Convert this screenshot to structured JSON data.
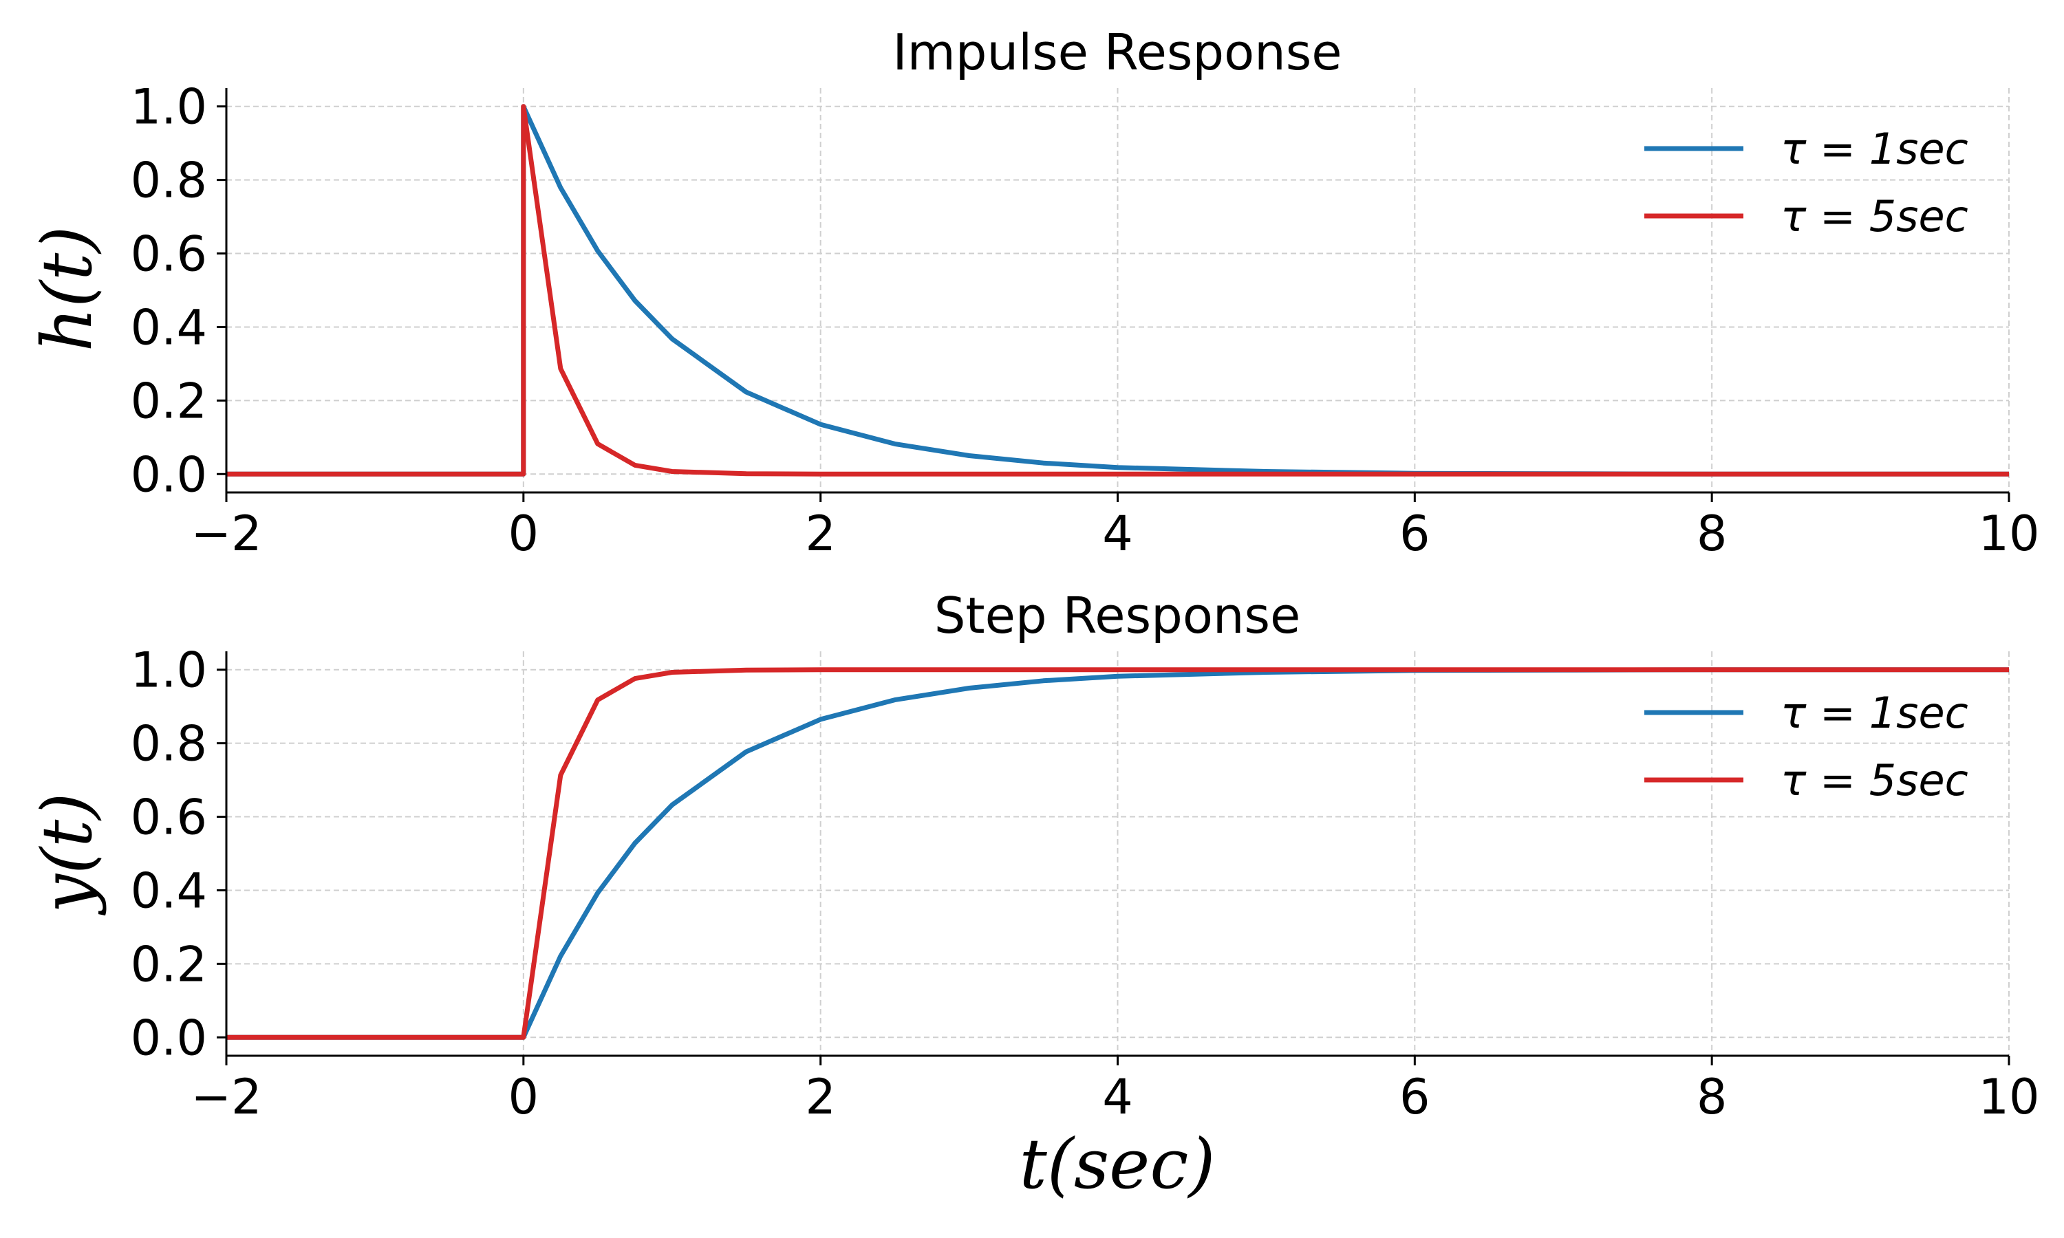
{
  "colors": {
    "series_blue": "#1f77b4",
    "series_red": "#d62728",
    "grid": "#cfcfcf",
    "axis": "#000000"
  },
  "chart_data": [
    {
      "type": "line",
      "title": "Impulse Response",
      "xlabel": "",
      "ylabel": "h(t)",
      "xlim": [
        -2,
        10
      ],
      "ylim": [
        -0.05,
        1.05
      ],
      "xticks": [
        -2,
        0,
        2,
        4,
        6,
        8,
        10
      ],
      "xtick_labels": [
        "−2",
        "0",
        "2",
        "4",
        "6",
        "8",
        "10"
      ],
      "yticks": [
        0.0,
        0.2,
        0.4,
        0.6,
        0.8,
        1.0
      ],
      "ytick_labels": [
        "0.0",
        "0.2",
        "0.4",
        "0.6",
        "0.8",
        "1.0"
      ],
      "grid": true,
      "legend_position": "top-right",
      "x": [
        -2,
        0,
        0,
        0.25,
        0.5,
        0.75,
        1,
        1.5,
        2,
        2.5,
        3,
        3.5,
        4,
        5,
        6,
        7,
        8,
        9,
        10
      ],
      "series": [
        {
          "name": "τ = 1sec",
          "color": "#1f77b4",
          "values": [
            0,
            0,
            1.0,
            0.779,
            0.607,
            0.472,
            0.368,
            0.223,
            0.135,
            0.082,
            0.05,
            0.03,
            0.018,
            0.007,
            0.002,
            0.001,
            0.0,
            0.0,
            0.0
          ]
        },
        {
          "name": "τ = 5sec",
          "color": "#d62728",
          "values": [
            0,
            0,
            1.0,
            0.287,
            0.082,
            0.024,
            0.007,
            0.001,
            0.0,
            0.0,
            0.0,
            0.0,
            0.0,
            0.0,
            0.0,
            0.0,
            0.0,
            0.0,
            0.0
          ]
        }
      ]
    },
    {
      "type": "line",
      "title": "Step Response",
      "xlabel": "t(sec)",
      "ylabel": "y(t)",
      "xlim": [
        -2,
        10
      ],
      "ylim": [
        -0.05,
        1.05
      ],
      "xticks": [
        -2,
        0,
        2,
        4,
        6,
        8,
        10
      ],
      "xtick_labels": [
        "−2",
        "0",
        "2",
        "4",
        "6",
        "8",
        "10"
      ],
      "yticks": [
        0.0,
        0.2,
        0.4,
        0.6,
        0.8,
        1.0
      ],
      "ytick_labels": [
        "0.0",
        "0.2",
        "0.4",
        "0.6",
        "0.8",
        "1.0"
      ],
      "grid": true,
      "legend_position": "top-right",
      "x": [
        -2,
        0,
        0.25,
        0.5,
        0.75,
        1,
        1.5,
        2,
        2.5,
        3,
        3.5,
        4,
        5,
        6,
        7,
        8,
        9,
        10
      ],
      "series": [
        {
          "name": "τ = 1sec",
          "color": "#1f77b4",
          "values": [
            0,
            0,
            0.221,
            0.393,
            0.528,
            0.632,
            0.777,
            0.865,
            0.918,
            0.95,
            0.97,
            0.982,
            0.993,
            0.998,
            0.999,
            1.0,
            1.0,
            1.0
          ]
        },
        {
          "name": "τ = 5sec",
          "color": "#d62728",
          "values": [
            0,
            0,
            0.713,
            0.918,
            0.976,
            0.993,
            0.999,
            1.0,
            1.0,
            1.0,
            1.0,
            1.0,
            1.0,
            1.0,
            1.0,
            1.0,
            1.0,
            1.0
          ]
        }
      ]
    }
  ]
}
